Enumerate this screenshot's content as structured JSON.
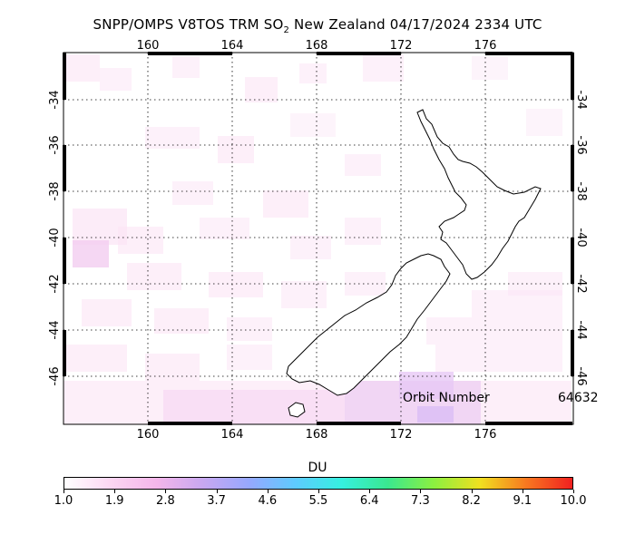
{
  "title": {
    "prefix": "SNPP/OMPS V8TOS TRM SO",
    "subscript": "2",
    "suffix": " New Zealand 04/17/2024 2334 UTC"
  },
  "map": {
    "lon_ticks": [
      "160",
      "164",
      "168",
      "172",
      "176"
    ],
    "lat_ticks": [
      "-34",
      "-36",
      "-38",
      "-40",
      "-42",
      "-44",
      "-46"
    ],
    "orbit_label": "Orbit Number",
    "orbit_number": "64632"
  },
  "colorbar": {
    "label": "DU",
    "ticks": [
      "1.0",
      "1.9",
      "2.8",
      "3.7",
      "4.6",
      "5.5",
      "6.4",
      "7.3",
      "8.2",
      "9.1",
      "10.0"
    ],
    "colors": [
      "#ffffff",
      "#fcd6f2",
      "#f4b6ea",
      "#c8a8f0",
      "#96a8ff",
      "#5ecbff",
      "#36f0e0",
      "#3ae890",
      "#8cf040",
      "#f0e020",
      "#f87820",
      "#f02020"
    ]
  }
}
